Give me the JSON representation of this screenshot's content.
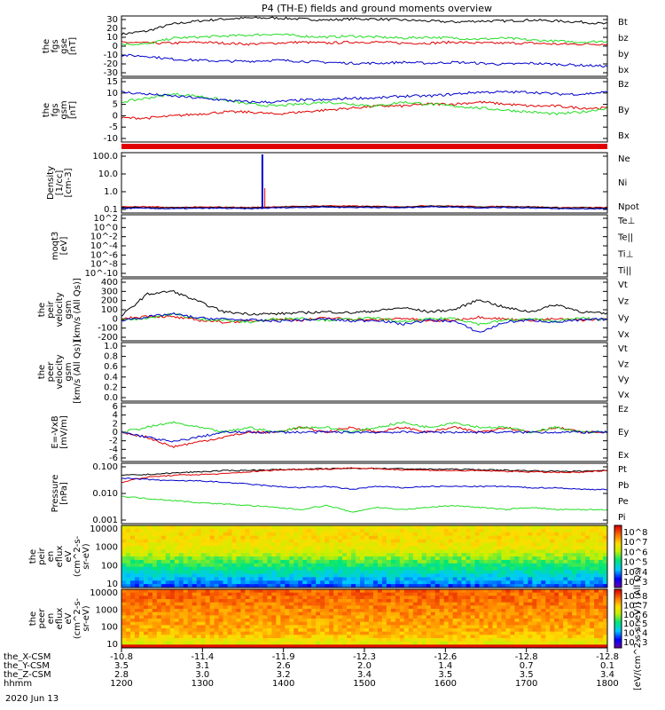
{
  "title": "P4 (TH-E) fields and ground moments overview",
  "date_label": "2020 Jun 13",
  "footer": {
    "row_labels": [
      "the_X-CSM",
      "the_Y-CSM",
      "the_Z-CSM",
      "hhmm"
    ],
    "x_csm": [
      "-10.8",
      "-11.4",
      "-11.9",
      "-12.3",
      "-12.6",
      "-12.8",
      "-12.8"
    ],
    "x_csm_top": [
      "3.5",
      "3.1",
      "2.6",
      "2.0",
      "1.4",
      "0.7",
      "0.1"
    ],
    "y_csm": [
      "2.8",
      "3.0",
      "3.2",
      "3.4",
      "3.5",
      "3.5",
      "3.4"
    ],
    "hhmm": [
      "1200",
      "1300",
      "1400",
      "1500",
      "1600",
      "1700",
      "1800"
    ]
  },
  "colorbar_label": "[eV/(cm^2-s-sr-eV)] (All Qs)",
  "colors": {
    "black": "#000000",
    "red": "#e00000",
    "green": "#22dd22",
    "blue": "#0000cc"
  },
  "chart_data": [
    {
      "type": "line",
      "ylabel": [
        "the",
        "fgs",
        "gse",
        "[nT]"
      ],
      "yticks": [
        "30",
        "20",
        "10",
        "0",
        "-10",
        "-20",
        "-30"
      ],
      "ylim": [
        -30,
        30
      ],
      "series": [
        {
          "name": "Bt",
          "color": "#000000",
          "values": [
            12,
            15,
            22,
            25,
            27,
            28,
            28,
            27,
            26,
            27,
            27,
            26,
            25,
            24,
            25,
            25,
            26,
            25,
            24,
            22
          ]
        },
        {
          "name": "bz",
          "color": "#e00000",
          "values": [
            4,
            3,
            3,
            4,
            3,
            2,
            3,
            4,
            3,
            4,
            4,
            3,
            3,
            4,
            3,
            3,
            3,
            2,
            2,
            2
          ]
        },
        {
          "name": "by",
          "color": "#22dd22",
          "values": [
            2,
            2,
            8,
            9,
            10,
            11,
            12,
            10,
            9,
            10,
            9,
            8,
            9,
            8,
            7,
            8,
            6,
            5,
            4,
            5
          ]
        },
        {
          "name": "bx",
          "color": "#0000cc",
          "values": [
            -9,
            -10,
            -13,
            -14,
            -15,
            -15,
            -14,
            -15,
            -16,
            -17,
            -17,
            -16,
            -17,
            -16,
            -17,
            -18,
            -17,
            -18,
            -19,
            -20
          ]
        }
      ]
    },
    {
      "type": "line",
      "ylabel": [
        "the",
        "fgs",
        "gsm",
        "[nT]"
      ],
      "yticks": [
        "15",
        "10",
        "5",
        "0",
        "-5",
        "-10"
      ],
      "ylim": [
        -15,
        17
      ],
      "series": [
        {
          "name": "Bz",
          "color": "#e00000",
          "values": [
            -3,
            -3,
            -2,
            -1,
            0,
            0,
            -1,
            0,
            1,
            2,
            3,
            3,
            4,
            4,
            5,
            4,
            3,
            3,
            2,
            2
          ]
        },
        {
          "name": "By",
          "color": "#22dd22",
          "values": [
            5,
            7,
            9,
            8,
            6,
            4,
            3,
            4,
            5,
            4,
            3,
            5,
            4,
            3,
            2,
            1,
            0,
            -1,
            0,
            2
          ]
        },
        {
          "name": "Bx",
          "color": "#0000cc",
          "values": [
            10,
            9,
            8,
            7,
            6,
            5,
            5,
            6,
            6,
            7,
            7,
            8,
            8,
            9,
            10,
            10,
            10,
            9,
            9,
            10
          ]
        }
      ]
    },
    {
      "type": "line",
      "ylabel": [
        "Density",
        "[1/cc]",
        "[cm-3]"
      ],
      "yticks": [
        "100.0",
        "10.0",
        "1.0",
        "0.1"
      ],
      "ylim_log": [
        -1,
        2.3
      ],
      "series": [
        {
          "name": "Ne",
          "color": "#e00000",
          "values": [
            0.22,
            0.22,
            0.2,
            0.21,
            0.21,
            0.2,
            0.22,
            0.23,
            0.25,
            0.24,
            0.23,
            0.22,
            0.25,
            0.24,
            0.22,
            0.23,
            0.22,
            0.2,
            0.2,
            0.2
          ]
        },
        {
          "name": "Ni",
          "color": "#000000",
          "values": [
            0.2,
            0.2,
            0.19,
            0.2,
            0.2,
            0.19,
            0.21,
            0.22,
            0.23,
            0.22,
            0.22,
            0.21,
            0.24,
            0.23,
            0.21,
            0.22,
            0.21,
            0.19,
            0.19,
            0.19
          ]
        },
        {
          "name": "Npot",
          "color": "#0000cc",
          "values": [
            0.18,
            0.18,
            0.17,
            0.18,
            0.18,
            0.17,
            0.19,
            0.2,
            0.21,
            0.2,
            0.2,
            0.19,
            0.22,
            0.21,
            0.19,
            0.2,
            0.19,
            0.17,
            0.17,
            0.17
          ]
        }
      ]
    },
    {
      "type": "line",
      "ylabel": [
        "moqt3",
        "[eV]"
      ],
      "yticks": [
        "10^2",
        "10^0",
        "10^-2",
        "10^-4",
        "10^-6",
        "10^-8",
        "10^-10"
      ],
      "series": [
        {
          "name": "Te⊥",
          "color": "#e00000"
        },
        {
          "name": "Te||",
          "color": "#000000"
        },
        {
          "name": "Ti⊥",
          "color": "#0000cc"
        },
        {
          "name": "Ti||",
          "color": "#22dd22"
        }
      ]
    },
    {
      "type": "line",
      "ylabel": [
        "the",
        "peir",
        "velocity",
        "gsm",
        "[km/s (All Qs)]"
      ],
      "yticks": [
        "400",
        "300",
        "200",
        "100",
        "0",
        "-100",
        "-200"
      ],
      "ylim": [
        -200,
        400
      ],
      "series": [
        {
          "name": "Vt",
          "color": "#000000",
          "values": [
            40,
            250,
            280,
            180,
            80,
            60,
            60,
            70,
            80,
            70,
            90,
            120,
            80,
            100,
            200,
            120,
            80,
            150,
            80,
            60
          ]
        },
        {
          "name": "Vz",
          "color": "#e00000",
          "values": [
            10,
            40,
            30,
            0,
            -20,
            -10,
            10,
            0,
            20,
            10,
            0,
            20,
            -10,
            0,
            30,
            10,
            0,
            10,
            0,
            10
          ]
        },
        {
          "name": "Vy",
          "color": "#22dd22",
          "values": [
            0,
            20,
            60,
            10,
            0,
            -20,
            10,
            20,
            0,
            10,
            20,
            -20,
            10,
            20,
            -40,
            0,
            10,
            -10,
            20,
            0
          ]
        },
        {
          "name": "Vx",
          "color": "#0000cc",
          "values": [
            0,
            30,
            60,
            20,
            10,
            0,
            -10,
            0,
            10,
            -10,
            0,
            -40,
            0,
            -10,
            -120,
            -20,
            0,
            -20,
            0,
            10
          ]
        }
      ]
    },
    {
      "type": "line",
      "ylabel": [
        "the",
        "peer",
        "velocity",
        "gsm",
        "[km/s (All Qs)]"
      ],
      "yticks": [
        "1.0",
        "0.8",
        "0.6",
        "0.4",
        "0.2",
        "0.0"
      ],
      "ylim": [
        0,
        1
      ],
      "series": [
        {
          "name": "Vt",
          "color": "#000000"
        },
        {
          "name": "Vz",
          "color": "#e00000"
        },
        {
          "name": "Vy",
          "color": "#22dd22"
        },
        {
          "name": "Vx",
          "color": "#0000cc"
        }
      ]
    },
    {
      "type": "line",
      "ylabel": [
        "E=-VxB",
        "[mV/m]"
      ],
      "yticks": [
        "6",
        "4",
        "2",
        "0",
        "-2",
        "-4",
        "-6"
      ],
      "ylim": [
        -6,
        6
      ],
      "series": [
        {
          "name": "Ez",
          "color": "#e00000",
          "values": [
            0,
            -1,
            -3,
            -2,
            -1,
            0,
            0,
            1,
            0,
            1,
            0,
            1,
            0,
            1,
            0,
            1,
            0,
            1,
            0,
            0
          ]
        },
        {
          "name": "Ey",
          "color": "#22dd22",
          "values": [
            0,
            1,
            2,
            1,
            0,
            1,
            0,
            1,
            1,
            0,
            1,
            2,
            1,
            2,
            1,
            1,
            0,
            1,
            0,
            0
          ]
        },
        {
          "name": "Ex",
          "color": "#0000cc",
          "values": [
            0,
            -1,
            -2,
            -1,
            0,
            0,
            0,
            0,
            0,
            0,
            0,
            0,
            0,
            0,
            0,
            0,
            0,
            0,
            0,
            0
          ]
        }
      ]
    },
    {
      "type": "line",
      "ylabel": [
        "Pressure",
        "[nPa]"
      ],
      "yticks": [
        "0.100",
        "0.010",
        "0.001"
      ],
      "ylim_log": [
        -3,
        -0.4
      ],
      "series": [
        {
          "name": "Pt",
          "color": "#000000",
          "values": [
            0.12,
            0.13,
            0.15,
            0.17,
            0.19,
            0.2,
            0.21,
            0.22,
            0.23,
            0.24,
            0.24,
            0.23,
            0.22,
            0.22,
            0.21,
            0.2,
            0.19,
            0.18,
            0.18,
            0.2
          ]
        },
        {
          "name": "Pb",
          "color": "#e00000",
          "values": [
            0.06,
            0.1,
            0.12,
            0.13,
            0.14,
            0.17,
            0.2,
            0.22,
            0.22,
            0.25,
            0.23,
            0.21,
            0.2,
            0.19,
            0.19,
            0.18,
            0.17,
            0.16,
            0.16,
            0.2
          ]
        },
        {
          "name": "Pe",
          "color": "#22dd22",
          "values": [
            0.015,
            0.012,
            0.01,
            0.008,
            0.007,
            0.006,
            0.005,
            0.004,
            0.006,
            0.003,
            0.005,
            0.004,
            0.005,
            0.006,
            0.005,
            0.004,
            0.005,
            0.004,
            0.004,
            0.004
          ]
        },
        {
          "name": "Pi",
          "color": "#0000cc",
          "values": [
            0.09,
            0.08,
            0.07,
            0.07,
            0.06,
            0.05,
            0.04,
            0.035,
            0.04,
            0.03,
            0.04,
            0.035,
            0.04,
            0.04,
            0.04,
            0.04,
            0.035,
            0.035,
            0.03,
            0.03
          ]
        }
      ]
    },
    {
      "type": "heatmap",
      "ylabel": [
        "the",
        "peir",
        "en",
        "eflux",
        "eV",
        "(cm^2-s-",
        "sr-eV)"
      ],
      "yticks": [
        "10000",
        "1000",
        "100",
        "10"
      ],
      "cbar_ticks": [
        "10^8",
        "10^7",
        "10^6",
        "10^5",
        "10^4",
        "10^3"
      ]
    },
    {
      "type": "heatmap",
      "ylabel": [
        "the",
        "peer",
        "en",
        "eflux",
        "eV",
        "(cm^2-s-",
        "sr-eV)"
      ],
      "yticks": [
        "10000",
        "1000",
        "100",
        "10"
      ],
      "cbar_ticks": [
        "10^8",
        "10^7",
        "10^6",
        "10^5",
        "10^4",
        "10^3"
      ]
    }
  ]
}
